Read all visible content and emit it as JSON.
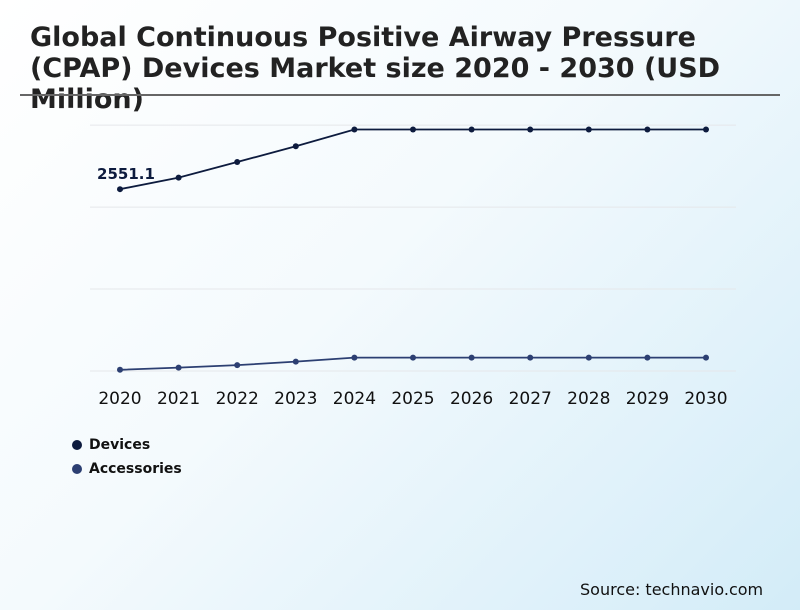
{
  "title": "Global Continuous Positive Airway Pressure (CPAP) Devices Market size 2020 - 2030 (USD Million)",
  "source": "Source: technavio.com",
  "colors": {
    "devices": "#0d1b3e",
    "accessories": "#2c3f72",
    "gridline": "#e5e7ea",
    "title_rule": "#666666"
  },
  "chart_data": {
    "type": "line",
    "title": "Global Continuous Positive Airway Pressure (CPAP) Devices Market size 2020 - 2030 (USD Million)",
    "x": [
      "2020",
      "2021",
      "2022",
      "2023",
      "2024",
      "2025",
      "2026",
      "2027",
      "2028",
      "2029",
      "2030"
    ],
    "series": [
      {
        "name": "Devices",
        "values": [
          2551.1,
          2714,
          2932,
          3154,
          3389,
          3389,
          3389,
          3389,
          3389,
          3389,
          3389
        ]
      },
      {
        "name": "Accessories",
        "values": [
          17,
          47,
          82,
          131,
          188,
          188,
          188,
          188,
          188,
          188,
          188
        ]
      }
    ],
    "data_labels": [
      {
        "series": "Devices",
        "x": "2020",
        "text": "2551.1"
      }
    ],
    "ylim": [
      0,
      3550
    ],
    "y_gridlines": [
      0,
      1150,
      2300,
      3450
    ],
    "y_tick_labels_shown": false,
    "grid": true,
    "legend": "bottom-left"
  }
}
